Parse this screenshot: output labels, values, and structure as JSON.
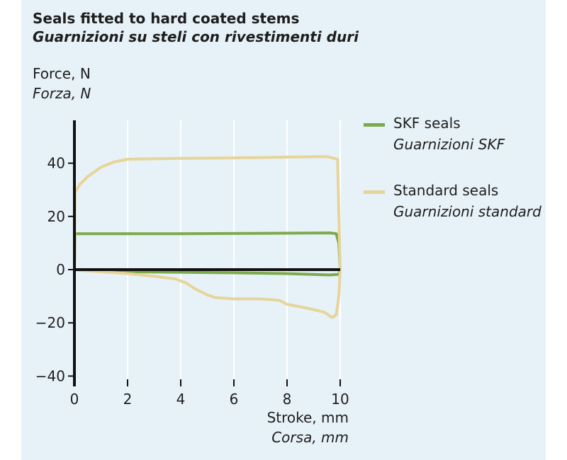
{
  "chart_data": {
    "type": "line",
    "title": "Seals fitted to hard coated stems",
    "subtitle": "Guarnizioni su steli con rivestimenti duri",
    "ylabel": "Force, N",
    "ylabel_it": "Forza, N",
    "xlabel": "Stroke, mm",
    "xlabel_it": "Corsa, mm",
    "xlim": [
      0,
      10
    ],
    "ylim": [
      -40,
      55
    ],
    "x_ticks": [
      0,
      2,
      4,
      6,
      8,
      10
    ],
    "y_ticks": [
      -40,
      -20,
      0,
      20,
      40
    ],
    "grid": "vertical",
    "legend_position": "right",
    "series": [
      {
        "name": "SKF seals",
        "name_it": "Guarnizioni SKF",
        "color": "#7daa4b",
        "points": [
          [
            0,
            0
          ],
          [
            0.02,
            13.5
          ],
          [
            2,
            13.5
          ],
          [
            4,
            13.5
          ],
          [
            6,
            13.6
          ],
          [
            8,
            13.7
          ],
          [
            9.6,
            13.8
          ],
          [
            9.85,
            13.5
          ],
          [
            9.95,
            10
          ],
          [
            10,
            0
          ],
          [
            9.95,
            -1.8
          ],
          [
            9.6,
            -2
          ],
          [
            8,
            -1.5
          ],
          [
            6,
            -1.2
          ],
          [
            4,
            -1
          ],
          [
            2,
            -0.8
          ],
          [
            0.3,
            -0.2
          ],
          [
            0,
            0
          ]
        ]
      },
      {
        "name": "Standard seals",
        "name_it": "Guarnizioni standard",
        "color": "#e6d49a",
        "points": [
          [
            0,
            0
          ],
          [
            0.02,
            29
          ],
          [
            0.2,
            32
          ],
          [
            0.5,
            35
          ],
          [
            1,
            38.5
          ],
          [
            1.5,
            40.5
          ],
          [
            2,
            41.5
          ],
          [
            4,
            41.8
          ],
          [
            6,
            42
          ],
          [
            8,
            42.3
          ],
          [
            9.5,
            42.5
          ],
          [
            9.9,
            41.5
          ],
          [
            10,
            0
          ],
          [
            9.95,
            -10
          ],
          [
            9.85,
            -17
          ],
          [
            9.7,
            -18
          ],
          [
            9.4,
            -16
          ],
          [
            9,
            -15
          ],
          [
            8.5,
            -14
          ],
          [
            8,
            -13
          ],
          [
            7.7,
            -11.5
          ],
          [
            7,
            -11
          ],
          [
            6,
            -11
          ],
          [
            5.3,
            -10.5
          ],
          [
            5,
            -9.5
          ],
          [
            4.5,
            -7
          ],
          [
            4.2,
            -5
          ],
          [
            3.8,
            -3.5
          ],
          [
            3,
            -2.5
          ],
          [
            2,
            -1.5
          ],
          [
            1,
            -0.8
          ],
          [
            0.3,
            -0.3
          ],
          [
            0,
            0
          ]
        ]
      }
    ]
  }
}
